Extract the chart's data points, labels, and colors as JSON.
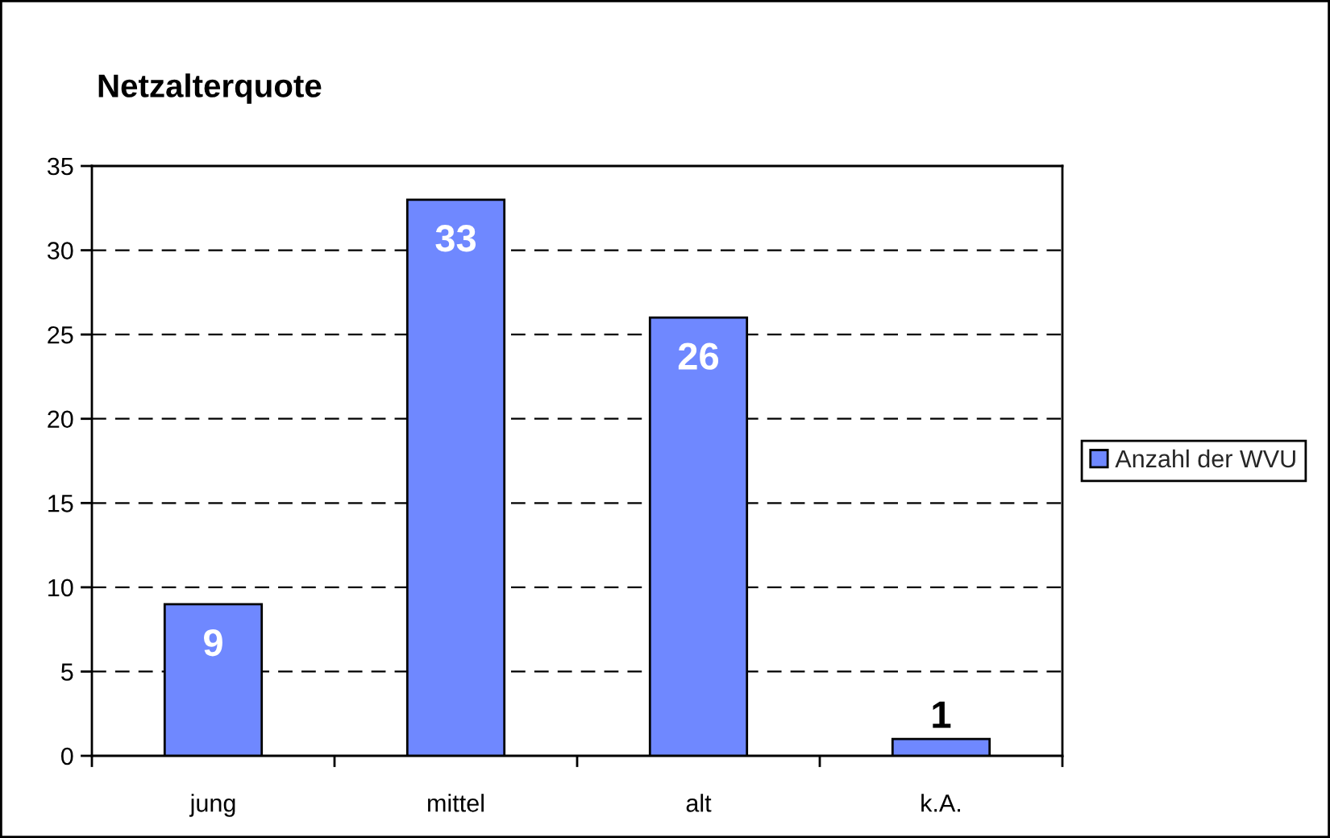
{
  "chart_data": {
    "type": "bar",
    "title": "Netzalterquote",
    "categories": [
      "jung",
      "mittel",
      "alt",
      "k.A."
    ],
    "series": [
      {
        "name": "Anzahl der WVU",
        "color": "#6f88ff",
        "values": [
          9,
          33,
          26,
          1
        ]
      }
    ],
    "ylim": [
      0,
      35
    ],
    "yticks": [
      0,
      5,
      10,
      15,
      20,
      25,
      30,
      35
    ],
    "grid": "y",
    "legend": "right",
    "data_labels": true
  }
}
